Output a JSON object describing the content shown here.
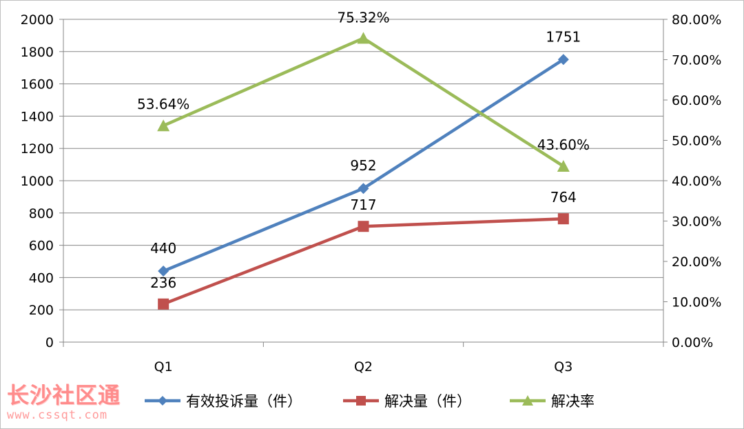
{
  "chart_data": {
    "type": "line",
    "categories": [
      "Q1",
      "Q2",
      "Q3"
    ],
    "y_left": {
      "min": 0,
      "max": 2000,
      "step": 200,
      "ticks": [
        "0",
        "200",
        "400",
        "600",
        "800",
        "1000",
        "1200",
        "1400",
        "1600",
        "1800",
        "2000"
      ]
    },
    "y_right": {
      "min": 0,
      "max": 80,
      "step": 10,
      "ticks": [
        "0.00%",
        "10.00%",
        "20.00%",
        "30.00%",
        "40.00%",
        "50.00%",
        "60.00%",
        "70.00%",
        "80.00%"
      ]
    },
    "series": [
      {
        "name": "有效投诉量（件）",
        "axis": "left",
        "color": "#4f81bd",
        "marker": "diamond",
        "values": [
          440,
          952,
          1751
        ],
        "labels": [
          "440",
          "952",
          "1751"
        ]
      },
      {
        "name": "解决量（件）",
        "axis": "left",
        "color": "#c0504d",
        "marker": "square",
        "values": [
          236,
          717,
          764
        ],
        "labels": [
          "236",
          "717",
          "764"
        ]
      },
      {
        "name": "解决率",
        "axis": "right",
        "color": "#9bbb59",
        "marker": "triangle",
        "values": [
          53.64,
          75.32,
          43.6
        ],
        "labels": [
          "53.64%",
          "75.32%",
          "43.60%"
        ]
      }
    ],
    "grid": "horizontal-major",
    "legend": "bottom"
  },
  "watermark": {
    "text": "长沙社区通",
    "url": "www.cssqt.com"
  }
}
